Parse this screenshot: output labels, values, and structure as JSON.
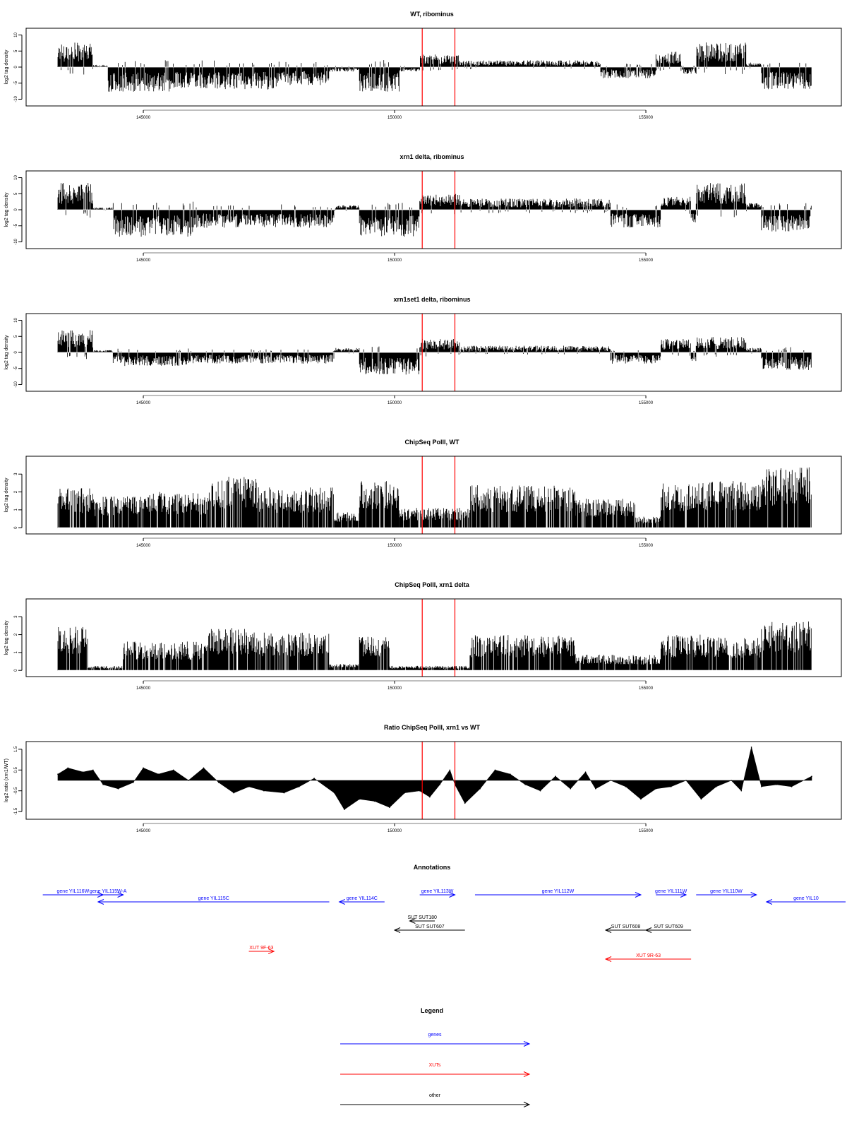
{
  "colors": {
    "signal": "#000000",
    "marker": "#ff0000",
    "gene": "#0000ff",
    "xut": "#ff0000",
    "other": "#000000"
  },
  "chart_data": [
    {
      "type": "bar",
      "title": "WT, ribominus",
      "ylabel": "log2 tag density",
      "xlim": [
        143300,
        158300
      ],
      "ylim": [
        -11,
        11
      ],
      "yticks": [
        -10,
        -5,
        0,
        5,
        10
      ],
      "xticks": [
        145000,
        150000,
        155000
      ],
      "markers": [
        150550,
        151200
      ],
      "profile": [
        {
          "x": [
            143300,
            144000
          ],
          "y": 5.5
        },
        {
          "x": [
            144000,
            144300
          ],
          "y": 0.5
        },
        {
          "x": [
            144300,
            145600
          ],
          "y": -5.5
        },
        {
          "x": [
            145600,
            147700
          ],
          "y": -5
        },
        {
          "x": [
            147700,
            148700
          ],
          "y": -4
        },
        {
          "x": [
            148700,
            149300
          ],
          "y": -1
        },
        {
          "x": [
            149300,
            150100
          ],
          "y": -5.5
        },
        {
          "x": [
            150100,
            150500
          ],
          "y": -1
        },
        {
          "x": [
            150500,
            151300
          ],
          "y": 3
        },
        {
          "x": [
            151300,
            154100
          ],
          "y": 1.5
        },
        {
          "x": [
            154100,
            155200
          ],
          "y": -2.5
        },
        {
          "x": [
            155200,
            155700
          ],
          "y": 3.5
        },
        {
          "x": [
            155700,
            156000
          ],
          "y": -1.5
        },
        {
          "x": [
            156000,
            157000
          ],
          "y": 5.5
        },
        {
          "x": [
            157000,
            157300
          ],
          "y": 1
        },
        {
          "x": [
            157300,
            158300
          ],
          "y": -5
        }
      ]
    },
    {
      "type": "bar",
      "title": "xrn1 delta, ribominus",
      "ylabel": "log2 tag density",
      "xlim": [
        143300,
        158300
      ],
      "ylim": [
        -11,
        11
      ],
      "yticks": [
        -10,
        -5,
        0,
        5,
        10
      ],
      "xticks": [
        145000,
        150000,
        155000
      ],
      "markers": [
        150550,
        151200
      ],
      "profile": [
        {
          "x": [
            143300,
            144000
          ],
          "y": 6
        },
        {
          "x": [
            144000,
            144400
          ],
          "y": 0.5
        },
        {
          "x": [
            144400,
            146000
          ],
          "y": -6
        },
        {
          "x": [
            146000,
            148800
          ],
          "y": -4
        },
        {
          "x": [
            148800,
            149300
          ],
          "y": 1
        },
        {
          "x": [
            149300,
            150500
          ],
          "y": -6
        },
        {
          "x": [
            150500,
            151300
          ],
          "y": 3.5
        },
        {
          "x": [
            151300,
            154300
          ],
          "y": 2.5
        },
        {
          "x": [
            154300,
            155300
          ],
          "y": -4
        },
        {
          "x": [
            155300,
            155900
          ],
          "y": 3
        },
        {
          "x": [
            155900,
            156000
          ],
          "y": -3
        },
        {
          "x": [
            156000,
            157000
          ],
          "y": 6
        },
        {
          "x": [
            157000,
            157300
          ],
          "y": 1.5
        },
        {
          "x": [
            157300,
            158300
          ],
          "y": -5
        }
      ]
    },
    {
      "type": "bar",
      "title": "xrn1set1 delta, ribominus",
      "ylabel": "log2 tag density",
      "xlim": [
        143300,
        158300
      ],
      "ylim": [
        -11,
        11
      ],
      "yticks": [
        -10,
        -5,
        0,
        5,
        10
      ],
      "xticks": [
        145000,
        150000,
        155000
      ],
      "markers": [
        150550,
        151200
      ],
      "profile": [
        {
          "x": [
            143300,
            144000
          ],
          "y": 5
        },
        {
          "x": [
            144000,
            144400
          ],
          "y": 0.5
        },
        {
          "x": [
            144400,
            146000
          ],
          "y": -3
        },
        {
          "x": [
            146000,
            148800
          ],
          "y": -2.5
        },
        {
          "x": [
            148800,
            149300
          ],
          "y": 1
        },
        {
          "x": [
            149300,
            150500
          ],
          "y": -5
        },
        {
          "x": [
            150500,
            151300
          ],
          "y": 3
        },
        {
          "x": [
            151300,
            154300
          ],
          "y": 1.5
        },
        {
          "x": [
            154300,
            155300
          ],
          "y": -2.5
        },
        {
          "x": [
            155300,
            155900
          ],
          "y": 3
        },
        {
          "x": [
            155900,
            156000
          ],
          "y": -2
        },
        {
          "x": [
            156000,
            157000
          ],
          "y": 3.5
        },
        {
          "x": [
            157000,
            157300
          ],
          "y": 1
        },
        {
          "x": [
            157300,
            158300
          ],
          "y": -4
        }
      ]
    },
    {
      "type": "bar",
      "title": "ChipSeq PolII, WT",
      "ylabel": "log2 tag density",
      "xlim": [
        143300,
        158300
      ],
      "ylim": [
        -0.15,
        3.8
      ],
      "yticks": [
        0,
        1,
        2,
        3
      ],
      "xticks": [
        145000,
        150000,
        155000
      ],
      "markers": [
        150550,
        151200
      ],
      "profile": [
        {
          "x": [
            143300,
            144000
          ],
          "y": 1.8
        },
        {
          "x": [
            144000,
            145000
          ],
          "y": 1.4
        },
        {
          "x": [
            145000,
            146300
          ],
          "y": 1.6
        },
        {
          "x": [
            146300,
            147300
          ],
          "y": 2.3
        },
        {
          "x": [
            147300,
            148800
          ],
          "y": 1.8
        },
        {
          "x": [
            148800,
            149300
          ],
          "y": 0.7
        },
        {
          "x": [
            149300,
            150100
          ],
          "y": 2.1
        },
        {
          "x": [
            150100,
            151500
          ],
          "y": 0.9
        },
        {
          "x": [
            151500,
            153600
          ],
          "y": 1.9
        },
        {
          "x": [
            153600,
            154800
          ],
          "y": 1.3
        },
        {
          "x": [
            154800,
            155300
          ],
          "y": 0.5
        },
        {
          "x": [
            155300,
            156000
          ],
          "y": 2.0
        },
        {
          "x": [
            156000,
            157300
          ],
          "y": 2.1
        },
        {
          "x": [
            157300,
            158300
          ],
          "y": 2.7
        }
      ]
    },
    {
      "type": "bar",
      "title": "ChipSeq PolII, xrn1 delta",
      "ylabel": "log2 tag density",
      "xlim": [
        143300,
        158300
      ],
      "ylim": [
        -0.15,
        3.8
      ],
      "yticks": [
        0,
        1,
        2,
        3
      ],
      "xticks": [
        145000,
        150000,
        155000
      ],
      "markers": [
        150550,
        151200
      ],
      "profile": [
        {
          "x": [
            143300,
            143900
          ],
          "y": 2.0
        },
        {
          "x": [
            143900,
            144600
          ],
          "y": 0.2
        },
        {
          "x": [
            144600,
            146300
          ],
          "y": 1.3
        },
        {
          "x": [
            146300,
            147300
          ],
          "y": 1.9
        },
        {
          "x": [
            147300,
            148700
          ],
          "y": 1.7
        },
        {
          "x": [
            148700,
            149300
          ],
          "y": 0.3
        },
        {
          "x": [
            149300,
            149900
          ],
          "y": 1.5
        },
        {
          "x": [
            149900,
            151500
          ],
          "y": 0.2
        },
        {
          "x": [
            151500,
            153600
          ],
          "y": 1.6
        },
        {
          "x": [
            153600,
            155300
          ],
          "y": 0.7
        },
        {
          "x": [
            155300,
            156100
          ],
          "y": 1.6
        },
        {
          "x": [
            156100,
            157300
          ],
          "y": 1.5
        },
        {
          "x": [
            157300,
            158300
          ],
          "y": 2.2
        }
      ]
    },
    {
      "type": "area",
      "title": "Ratio ChipSeq PolII, xrn1 vs WT",
      "ylabel": "log2 ratio (xrn1/WT)",
      "xlim": [
        143300,
        158300
      ],
      "ylim": [
        -1.7,
        1.7
      ],
      "yticks": [
        -1.5,
        -0.5,
        0.5,
        1.5
      ],
      "xticks": [
        145000,
        150000,
        155000
      ],
      "markers": [
        150550,
        151200
      ],
      "x": [
        143300,
        143500,
        143800,
        144000,
        144200,
        144500,
        144800,
        145000,
        145300,
        145600,
        145900,
        146200,
        146500,
        146800,
        147100,
        147400,
        147800,
        148100,
        148400,
        148800,
        149000,
        149300,
        149600,
        149900,
        150200,
        150500,
        150700,
        150900,
        151100,
        151200,
        151400,
        151700,
        152000,
        152300,
        152600,
        152900,
        153200,
        153500,
        153800,
        154000,
        154300,
        154600,
        154900,
        155200,
        155500,
        155800,
        156100,
        156400,
        156700,
        156900,
        157100,
        157300,
        157600,
        157900,
        158300
      ],
      "y": [
        0.3,
        0.6,
        0.4,
        0.5,
        -0.2,
        -0.4,
        -0.1,
        0.6,
        0.3,
        0.5,
        0.0,
        0.6,
        -0.1,
        -0.6,
        -0.3,
        -0.5,
        -0.6,
        -0.3,
        0.1,
        -0.6,
        -1.4,
        -0.9,
        -1.0,
        -1.3,
        -0.6,
        -0.5,
        -0.8,
        -0.2,
        0.5,
        -0.2,
        -1.1,
        -0.4,
        0.5,
        0.3,
        -0.2,
        -0.5,
        0.2,
        -0.4,
        0.4,
        -0.4,
        0.0,
        -0.3,
        -0.9,
        -0.4,
        -0.3,
        0.0,
        -0.9,
        -0.3,
        0.0,
        -0.5,
        1.6,
        -0.3,
        -0.2,
        -0.3,
        0.2
      ]
    }
  ],
  "annotations": {
    "title": "Annotations",
    "tracks": [
      {
        "label": "gene YIL116W",
        "kind": "gene",
        "start": 143000,
        "end": 144200,
        "dir": "right",
        "row": 0
      },
      {
        "label": "gene YIL115W-A",
        "kind": "gene",
        "start": 144000,
        "end": 144600,
        "dir": "right",
        "row": 0
      },
      {
        "label": "gene YIL115C",
        "kind": "gene",
        "start": 144100,
        "end": 148700,
        "dir": "left",
        "row": 1
      },
      {
        "label": "gene YIL114C",
        "kind": "gene",
        "start": 148900,
        "end": 149800,
        "dir": "left",
        "row": 1
      },
      {
        "label": "gene YIL113W",
        "kind": "gene",
        "start": 150500,
        "end": 151200,
        "dir": "right",
        "row": 0
      },
      {
        "label": "gene YIL112W",
        "kind": "gene",
        "start": 151600,
        "end": 154900,
        "dir": "right",
        "row": 0
      },
      {
        "label": "gene YIL111W",
        "kind": "gene",
        "start": 155200,
        "end": 155800,
        "dir": "right",
        "row": 0
      },
      {
        "label": "gene YIL110W",
        "kind": "gene",
        "start": 156000,
        "end": 157200,
        "dir": "right",
        "row": 0
      },
      {
        "label": "gene YIL10",
        "kind": "gene",
        "start": 157400,
        "end": 159000,
        "dir": "left",
        "row": 1
      },
      {
        "label": "SUT SUT180",
        "kind": "other",
        "start": 150300,
        "end": 150800,
        "dir": "left",
        "row": 3
      },
      {
        "label": "SUT SUT607",
        "kind": "other",
        "start": 150000,
        "end": 151400,
        "dir": "left",
        "row": 4
      },
      {
        "label": "SUT SUT608",
        "kind": "other",
        "start": 154200,
        "end": 155000,
        "dir": "left",
        "row": 4
      },
      {
        "label": "SUT SUT609",
        "kind": "other",
        "start": 155000,
        "end": 155900,
        "dir": "left",
        "row": 4
      },
      {
        "label": "XUT 9F-63",
        "kind": "xut",
        "start": 147100,
        "end": 147600,
        "dir": "right",
        "row": 6
      },
      {
        "label": "XUT 9R-63",
        "kind": "xut",
        "start": 154200,
        "end": 155900,
        "dir": "left",
        "row": 7
      }
    ]
  },
  "legend": {
    "title": "Legend",
    "items": [
      {
        "label": "genes",
        "kind": "gene"
      },
      {
        "label": "XUTs",
        "kind": "xut"
      },
      {
        "label": "other",
        "kind": "other"
      }
    ]
  }
}
